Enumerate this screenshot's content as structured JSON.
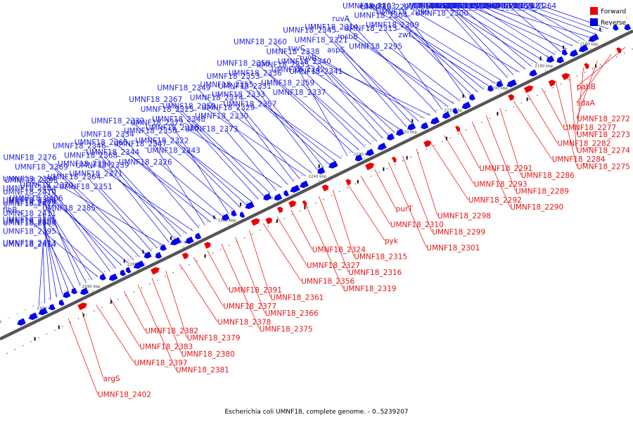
{
  "caption": "Escherichia coli UMNF18, complete genome. - 0..5239207",
  "legend": [
    {
      "label": "Forward",
      "color": "#ee0000"
    },
    {
      "label": "Reverse",
      "color": "#0000ee"
    }
  ],
  "colors": {
    "forward": "#ee0000",
    "reverse": "#0000ee",
    "backbone": "#444444"
  },
  "ticks": [
    "2180 kbp",
    "2190 kbp",
    "2200 kbp",
    "2210 kbp",
    "2220 kbp",
    "2230 kbp",
    "2240 kbp",
    "2250 kbp",
    "2260 kbp",
    "2270 kbp",
    "2280 kbp",
    "2290 kbp",
    "2300 kbp"
  ],
  "reverse_labels": [
    "UMNF18_2264",
    "UMNF18_2281",
    "UMNF18_2259",
    "UMNF18_2280",
    "UMNF18_2262",
    "UMNF18_2276",
    "UMNF18_2266",
    "UMNF18_2278",
    "UMNF18_2285",
    "UMNF18_2271",
    "UMNF18_2279",
    "UMNF18_2283",
    "proQ",
    "UMNF18_2288",
    "UMNF18_2294",
    "UMNF18_2296",
    "UMNF18_2300",
    "UMNF18_2302",
    "edd",
    "eda",
    "zwf",
    "UMNF18_2309",
    "UMNF18_2304",
    "UMNF18_2303",
    "UMNF18_2297",
    "UMNF18_2295",
    "msbB",
    "UMNF18_2314",
    "UMNF18_2313",
    "ruvA",
    "ruvB",
    "ruvC",
    "aspS",
    "UMNF18_2321",
    "UMNF18_2345",
    "UMNF18_2342",
    "UMNF18_2341",
    "UMNF18_2340",
    "UMNF18_2338",
    "UMNF18_2360",
    "UMNF18_2337",
    "UMNF18_2359",
    "UMNF18_2336",
    "UMNF18_2358",
    "UMNF18_2335",
    "UMNF18_2357",
    "UMNF18_2333",
    "UMNF18_2355",
    "UMNF18_2331",
    "UMNF18_2353",
    "UMNF18_2330",
    "UMNF18_2352",
    "UMNF18_2329",
    "UMNF18_2374",
    "UMNF18_2349",
    "UMNF18_2328",
    "UMNF18_2373",
    "UMNF18_2348",
    "UMNF18_2325",
    "UMNF18_2367",
    "UMNF18_2343",
    "UMNF18_2322",
    "UMNF18_2350",
    "UMNF18_2332",
    "UMNF18_2372",
    "UMNF18_2326",
    "UMNF18_2344",
    "UMNF18_2365",
    "UMNF18_2347",
    "UMNF18_2334",
    "UMNF18_2371",
    "UMNF18_2354",
    "UMNF18_2339",
    "UMNF18_2368",
    "UMNF18_2346",
    "UMNF18_2370",
    "UMNF18_2351",
    "UMNF18_2364",
    "UMNF18_2369",
    "UMNF18_2376",
    "UMNF18_2385",
    "UMNF18_2406",
    "UMNF18_2404",
    "UMNF18_2394",
    "UMNF18_2393",
    "UMNF18_2405",
    "flhB",
    "UMNF18_2392",
    "UMNF18_2398",
    "UMNF18_2410",
    "UMNF18_2395",
    "UMNF18_2403",
    "UMNF18_2409",
    "UMNF18_2411",
    "UMNF18_2412",
    "UMNF18_2413",
    "UMNF18_2414"
  ],
  "forward_labels": [
    "pabB",
    "sdaA",
    "UMNF18_2272",
    "UMNF18_2273",
    "UMNF18_2274",
    "UMNF18_2275",
    "UMNF18_2277",
    "UMNF18_2282",
    "UMNF18_2284",
    "UMNF18_2286",
    "UMNF18_2289",
    "UMNF18_2290",
    "UMNF18_2291",
    "UMNF18_2293",
    "UMNF18_2292",
    "UMNF18_2298",
    "UMNF18_2299",
    "UMNF18_2301",
    "purT",
    "UMNF18_2310",
    "pyk",
    "UMNF18_2315",
    "UMNF18_2316",
    "UMNF18_2319",
    "UMNF18_2324",
    "UMNF18_2327",
    "UMNF18_2356",
    "UMNF18_2361",
    "UMNF18_2366",
    "UMNF18_2375",
    "UMNF18_2391",
    "UMNF18_2377",
    "UMNF18_2378",
    "UMNF18_2379",
    "UMNF18_2380",
    "UMNF18_2381",
    "UMNF18_2382",
    "UMNF18_2383",
    "UMNF18_2397",
    "argS",
    "UMNF18_2402"
  ]
}
